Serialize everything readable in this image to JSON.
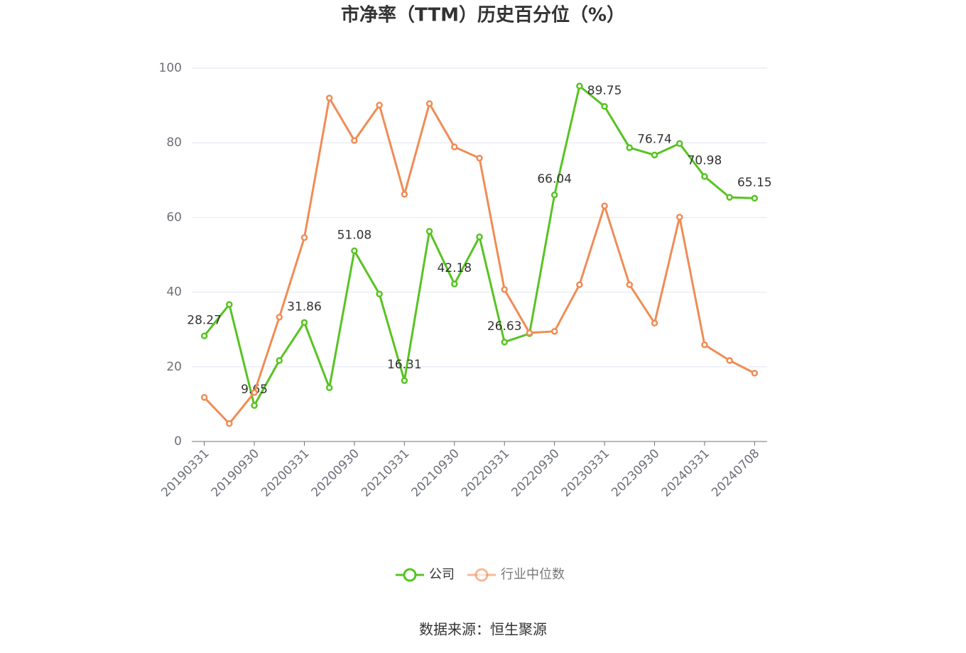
{
  "chart_data": {
    "type": "line",
    "title": "市净率（TTM）历史百分位（%）",
    "source": "数据来源：恒生聚源",
    "categories": [
      "20190331",
      null,
      "20190930",
      null,
      "20200331",
      null,
      "20200930",
      null,
      "20210331",
      null,
      "20210930",
      null,
      "20220331",
      null,
      "20220930",
      null,
      "20230331",
      null,
      "20230930",
      null,
      "20240331",
      null,
      "20240708"
    ],
    "series": [
      {
        "name": "公司",
        "color": "#58c322",
        "data_labels": true,
        "values": [
          28.27,
          36.7,
          9.65,
          21.7,
          31.86,
          14.4,
          51.08,
          39.5,
          16.31,
          56.3,
          42.18,
          54.8,
          26.63,
          28.9,
          66.04,
          95.2,
          89.75,
          78.7,
          76.74,
          79.8,
          70.98,
          65.4,
          65.15
        ]
      },
      {
        "name": "行业中位数",
        "color": "#f08c55",
        "data_labels": false,
        "values": [
          11.8,
          4.8,
          13.1,
          33.3,
          54.6,
          92.0,
          80.6,
          90.1,
          66.2,
          90.5,
          78.9,
          75.9,
          40.7,
          29.1,
          29.5,
          42.0,
          63.1,
          42.0,
          31.7,
          60.1,
          25.9,
          21.7,
          18.3
        ]
      }
    ],
    "ylim": [
      0,
      100
    ],
    "yticks": [
      0,
      20,
      40,
      60,
      80,
      100
    ],
    "grid": true,
    "legend": "bottom"
  }
}
